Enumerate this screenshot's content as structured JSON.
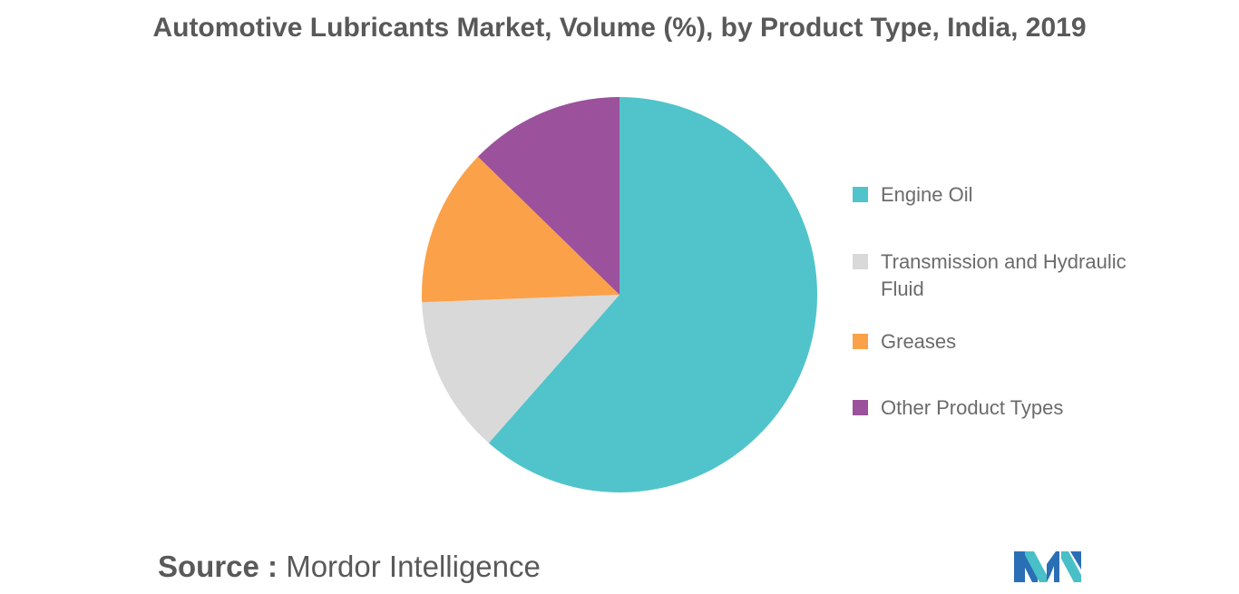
{
  "title": "Automotive Lubricants Market, Volume (%), by Product Type, India, 2019",
  "source": {
    "label": "Source :",
    "text": "Mordor Intelligence"
  },
  "logo": {
    "icon": "mordor-intelligence-logo",
    "colors": [
      "#2a6fb5",
      "#49bfc7"
    ]
  },
  "chart_data": {
    "type": "pie",
    "title": "Automotive Lubricants Market, Volume (%), by Product Type, India, 2019",
    "categories": [
      "Engine Oil",
      "Transmission and Hydraulic Fluid",
      "Greases",
      "Other Product Types"
    ],
    "values": [
      61.5,
      12.9,
      12.9,
      12.7
    ],
    "colors": [
      "#50c4ca",
      "#d9d9d9",
      "#fba149",
      "#9b519c"
    ],
    "start_angle_deg": 0,
    "direction": "clockwise",
    "legend_position": "right"
  }
}
